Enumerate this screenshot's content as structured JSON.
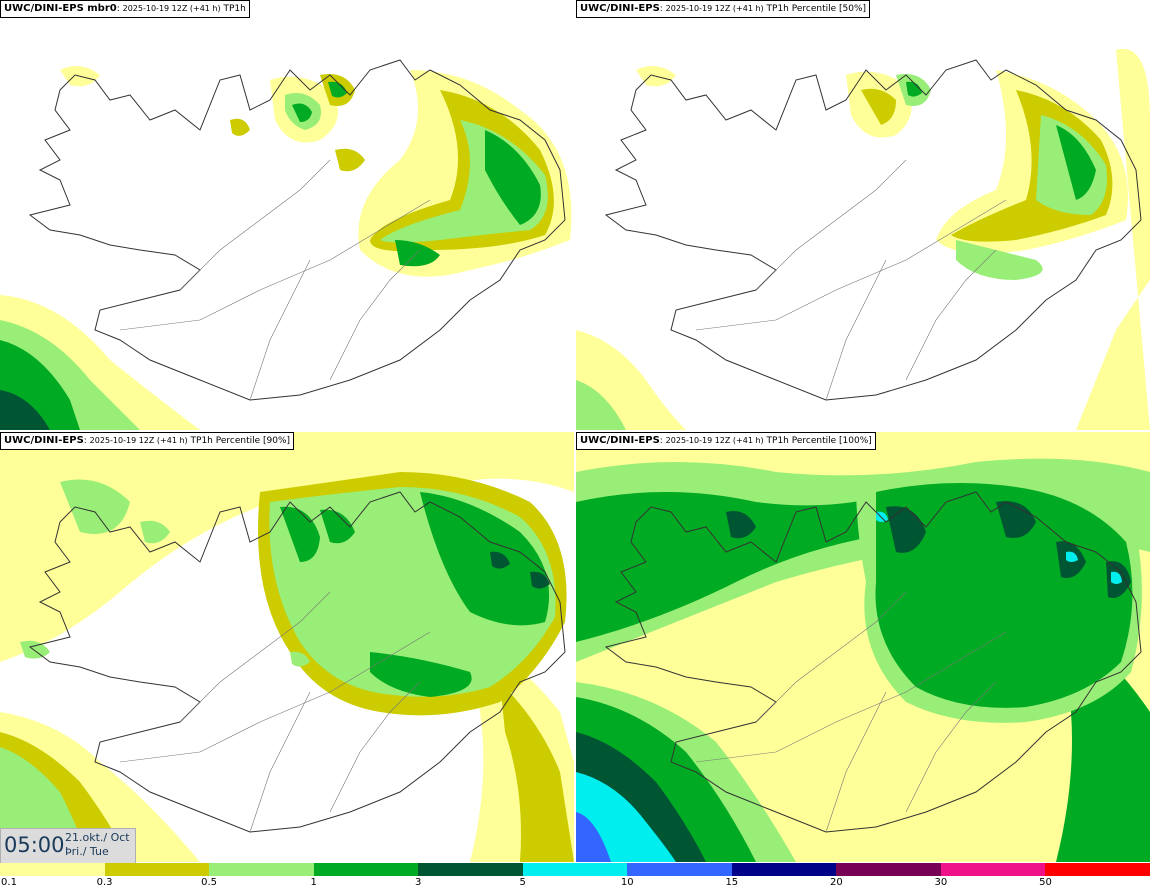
{
  "panels": [
    {
      "model": "UWC/DINI-EPS mbr0",
      "run": "2025-10-19 12Z (+41 h)",
      "field": "TP1h"
    },
    {
      "model": "UWC/DINI-EPS",
      "run": "2025-10-19 12Z (+41 h)",
      "field": "TP1h Percentile [50%]"
    },
    {
      "model": "UWC/DINI-EPS",
      "run": "2025-10-19 12Z (+41 h)",
      "field": "TP1h Percentile [90%]"
    },
    {
      "model": "UWC/DINI-EPS",
      "run": "2025-10-19 12Z (+41 h)",
      "field": "TP1h Percentile [100%]"
    }
  ],
  "valid_time": {
    "time": "05:00",
    "date": "21.okt./ Oct",
    "weekday": "Þri./ Tue"
  },
  "legend": {
    "colors": [
      "#ffff99",
      "#cccc00",
      "#99ee77",
      "#00aa22",
      "#005533",
      "#00eeee",
      "#3366ff",
      "#000088",
      "#770055",
      "#ee1188",
      "#ff0000"
    ],
    "labels": [
      "0.1",
      "0.3",
      "0.5",
      "1",
      "3",
      "5",
      "10",
      "15",
      "20",
      "30",
      "50"
    ]
  },
  "colors": {
    "light_yellow": "#ffff99",
    "olive": "#cccc00",
    "light_green": "#99ee77",
    "green": "#00aa22",
    "dark_green": "#005533",
    "cyan": "#00eeee"
  }
}
